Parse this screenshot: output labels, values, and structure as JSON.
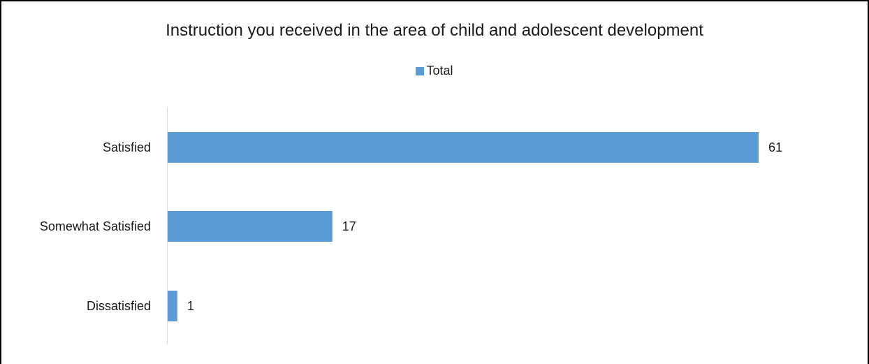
{
  "chart_data": {
    "type": "bar",
    "orientation": "horizontal",
    "title": "Instruction you received in the area of child and adolescent development",
    "categories": [
      "Satisfied",
      "Somewhat Satisfied",
      "Dissatisfied"
    ],
    "series": [
      {
        "name": "Total",
        "values": [
          61,
          17,
          1
        ],
        "color": "#5B9BD5"
      }
    ],
    "data_labels": true,
    "legend": "top-center",
    "grid": false,
    "xlim": [
      0,
      61
    ]
  }
}
